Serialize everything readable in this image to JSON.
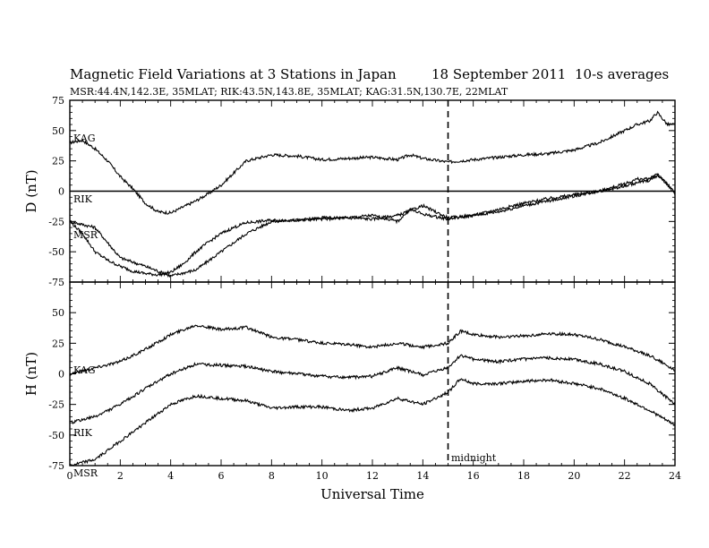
{
  "title": {
    "main": "Magnetic Field Variations at 3 Stations in Japan",
    "date": "18 September 2011",
    "avg": "10-s averages",
    "stations": "MSR:44.4N,142.3E, 35MLAT;  RIK:43.5N,143.8E, 35MLAT;  KAG:31.5N,130.7E, 22MLAT"
  },
  "annotation": "midnight",
  "chart_data": [
    {
      "type": "line",
      "panel": "D",
      "ylabel": "D (nT)",
      "ylim": [
        -75,
        75
      ],
      "yticks": [
        -75,
        -50,
        -25,
        0,
        25,
        50,
        75
      ],
      "xlim": [
        0,
        24
      ],
      "xticks": [
        0,
        2,
        4,
        6,
        8,
        10,
        12,
        14,
        16,
        18,
        20,
        22,
        24
      ],
      "zero_line": true,
      "vline_x": 15,
      "series": [
        {
          "name": "KAG",
          "x": [
            0,
            0.5,
            1,
            1.5,
            2,
            2.5,
            3,
            3.5,
            4,
            4.5,
            5,
            5.5,
            6,
            6.5,
            7,
            8,
            9,
            10,
            11,
            12,
            13,
            13.5,
            14,
            15,
            16,
            17,
            18,
            19,
            20,
            21,
            22,
            22.5,
            23,
            23.3,
            23.7,
            24
          ],
          "y": [
            40,
            42,
            35,
            25,
            12,
            2,
            -10,
            -17,
            -18,
            -13,
            -8,
            -2,
            5,
            15,
            25,
            30,
            29,
            26,
            27,
            28,
            26,
            30,
            27,
            24,
            26,
            28,
            30,
            31,
            34,
            40,
            50,
            55,
            58,
            65,
            55,
            55
          ]
        },
        {
          "name": "RIK",
          "x": [
            0,
            1,
            2,
            3,
            4,
            5,
            6,
            7,
            8,
            9,
            10,
            11,
            12,
            13,
            14,
            15,
            16,
            17,
            18,
            19,
            20,
            21,
            22,
            22.5,
            23,
            23.3,
            23.7,
            24
          ],
          "y": [
            -25,
            -30,
            -55,
            -62,
            -70,
            -65,
            -50,
            -35,
            -25,
            -24,
            -23,
            -22,
            -23,
            -20,
            -12,
            -22,
            -20,
            -15,
            -10,
            -6,
            -3,
            0,
            6,
            10,
            10,
            15,
            5,
            -2
          ]
        },
        {
          "name": "MSR",
          "x": [
            0,
            0.5,
            1,
            1.5,
            2,
            2.5,
            3,
            3.5,
            4,
            4.5,
            5,
            5.5,
            6,
            6.5,
            7,
            8,
            9,
            10,
            11,
            12,
            13,
            13.5,
            14,
            15,
            16,
            17,
            18,
            19,
            20,
            21,
            22,
            22.5,
            23,
            23.3,
            23.7,
            24
          ],
          "y": [
            -25,
            -35,
            -50,
            -57,
            -62,
            -66,
            -68,
            -69,
            -67,
            -60,
            -50,
            -42,
            -35,
            -30,
            -26,
            -24,
            -24,
            -22,
            -22,
            -20,
            -25,
            -15,
            -19,
            -23,
            -20,
            -17,
            -12,
            -8,
            -4,
            0,
            4,
            7,
            9,
            13,
            6,
            -2
          ]
        }
      ],
      "labels": [
        "KAG",
        "RIK",
        "MSR"
      ]
    },
    {
      "type": "line",
      "panel": "H",
      "ylabel": "H (nT)",
      "ylim": [
        -75,
        75
      ],
      "yticks": [
        -75,
        -50,
        -25,
        0,
        25,
        50
      ],
      "xlim": [
        0,
        24
      ],
      "xticks": [
        0,
        2,
        4,
        6,
        8,
        10,
        12,
        14,
        16,
        18,
        20,
        22,
        24
      ],
      "xlabel": "Universal Time",
      "vline_x": 15,
      "series": [
        {
          "name": "KAG",
          "x": [
            0,
            1,
            2,
            3,
            4,
            5,
            6,
            7,
            8,
            9,
            10,
            11,
            12,
            13,
            14,
            15,
            15.5,
            16,
            17,
            18,
            19,
            20,
            21,
            22,
            23,
            24
          ],
          "y": [
            0,
            5,
            10,
            20,
            32,
            40,
            36,
            38,
            30,
            28,
            25,
            24,
            22,
            25,
            22,
            25,
            35,
            32,
            30,
            31,
            33,
            32,
            28,
            22,
            15,
            3
          ]
        },
        {
          "name": "RIK",
          "x": [
            0,
            1,
            2,
            3,
            4,
            5,
            6,
            7,
            8,
            9,
            10,
            11,
            12,
            13,
            14,
            15,
            15.5,
            16,
            17,
            18,
            19,
            20,
            21,
            22,
            23,
            24
          ],
          "y": [
            -40,
            -35,
            -25,
            -12,
            0,
            8,
            7,
            6,
            2,
            0,
            -2,
            -3,
            -2,
            5,
            -1,
            5,
            15,
            12,
            10,
            12,
            13,
            12,
            8,
            2,
            -8,
            -25
          ]
        },
        {
          "name": "MSR",
          "x": [
            0,
            1,
            2,
            3,
            4,
            5,
            6,
            7,
            8,
            9,
            10,
            11,
            12,
            13,
            14,
            15,
            15.5,
            16,
            17,
            18,
            19,
            20,
            21,
            22,
            23,
            24
          ],
          "y": [
            -75,
            -70,
            -55,
            -40,
            -25,
            -18,
            -20,
            -22,
            -28,
            -27,
            -27,
            -30,
            -28,
            -20,
            -25,
            -15,
            -4,
            -8,
            -8,
            -6,
            -5,
            -8,
            -12,
            -20,
            -30,
            -42
          ]
        }
      ],
      "labels": [
        "KAG",
        "RIK",
        "MSR"
      ]
    }
  ]
}
